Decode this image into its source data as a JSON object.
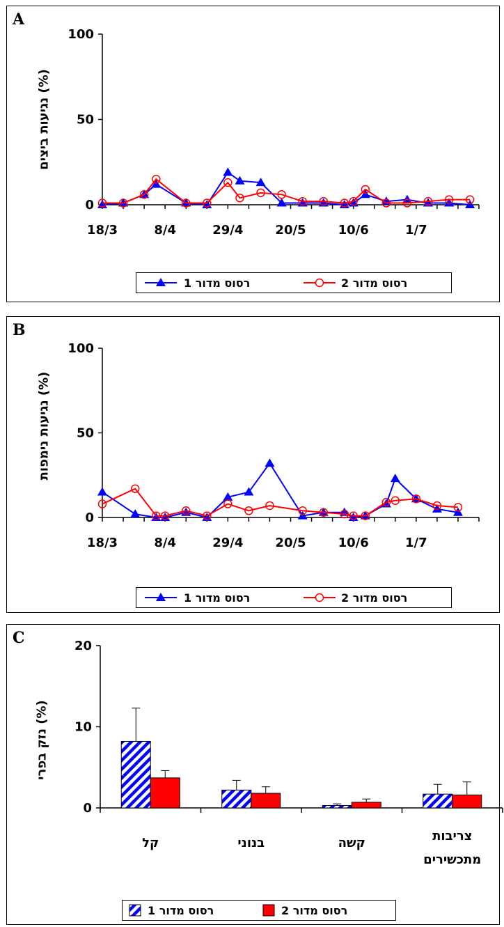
{
  "chart_data": [
    {
      "panel": "A",
      "type": "line",
      "ylabel": "נגיעות ביצים (%)",
      "ylim": [
        0,
        100
      ],
      "yticks": [
        "0",
        "50",
        "100"
      ],
      "xtick_labels": [
        "18/3",
        "8/4",
        "29/4",
        "20/5",
        "10/6",
        "1/7"
      ],
      "series": [
        {
          "name": "רסוס מדור 1",
          "color": "#0000ff",
          "marker": "triangle",
          "x": [
            "18/3",
            "25/3",
            "1/4",
            "5/4",
            "15/4",
            "22/4",
            "29/4",
            "3/5",
            "10/5",
            "17/5",
            "24/5",
            "31/5",
            "7/6",
            "10/6",
            "14/6",
            "21/6",
            "28/6",
            "5/7",
            "12/7",
            "19/7"
          ],
          "values": [
            0,
            1,
            6,
            12,
            1,
            0,
            19,
            14,
            13,
            1,
            1,
            1,
            0,
            1,
            6,
            2,
            3,
            1,
            1,
            0
          ]
        },
        {
          "name": "רסוס מדור 2",
          "color": "#ff0000",
          "marker": "circle",
          "x": [
            "18/3",
            "25/3",
            "1/4",
            "5/4",
            "15/4",
            "22/4",
            "29/4",
            "3/5",
            "10/5",
            "17/5",
            "24/5",
            "31/5",
            "7/6",
            "10/6",
            "14/6",
            "21/6",
            "28/6",
            "5/7",
            "12/7",
            "19/7"
          ],
          "values": [
            1,
            1,
            6,
            15,
            1,
            1,
            13,
            4,
            7,
            6,
            2,
            2,
            1,
            2,
            9,
            1,
            1,
            2,
            3,
            3
          ]
        }
      ],
      "legend": "bottom"
    },
    {
      "panel": "B",
      "type": "line",
      "ylabel": "נגיעות נימפות (%)",
      "ylim": [
        0,
        100
      ],
      "yticks": [
        "0",
        "50",
        "100"
      ],
      "xtick_labels": [
        "18/3",
        "8/4",
        "29/4",
        "20/5",
        "10/6",
        "1/7"
      ],
      "series": [
        {
          "name": "רסוס מדור 1",
          "color": "#0000ff",
          "marker": "triangle",
          "x": [
            "18/3",
            "29/3",
            "5/4",
            "8/4",
            "15/4",
            "22/4",
            "29/4",
            "6/5",
            "13/5",
            "24/5",
            "31/5",
            "7/6",
            "10/6",
            "14/6",
            "21/6",
            "24/6",
            "1/7",
            "8/7",
            "15/7"
          ],
          "values": [
            15,
            2,
            0,
            0,
            3,
            0,
            12,
            15,
            32,
            1,
            3,
            3,
            0,
            1,
            8,
            23,
            11,
            5,
            3
          ]
        },
        {
          "name": "רסוס מדור 2",
          "color": "#ff0000",
          "marker": "circle",
          "x": [
            "18/3",
            "29/3",
            "5/4",
            "8/4",
            "15/4",
            "22/4",
            "29/4",
            "6/5",
            "13/5",
            "24/5",
            "31/5",
            "7/6",
            "10/6",
            "14/6",
            "21/6",
            "24/6",
            "1/7",
            "8/7",
            "15/7"
          ],
          "values": [
            8,
            17,
            1,
            1,
            4,
            1,
            8,
            4,
            7,
            4,
            3,
            2,
            1,
            1,
            9,
            10,
            11,
            7,
            6
          ]
        }
      ],
      "legend": "bottom"
    },
    {
      "panel": "C",
      "type": "bar",
      "ylabel": "נזק בפרי (%)",
      "ylim": [
        0,
        20
      ],
      "yticks": [
        "0",
        "10",
        "20"
      ],
      "categories": [
        "קל",
        "בנוני",
        "קשה",
        "צריבות מתכשירים"
      ],
      "series": [
        {
          "name": "רסוס מדור 1",
          "color": "#0000ff",
          "fill": "hatch",
          "values": [
            8.2,
            2.2,
            0.3,
            1.7
          ],
          "errors": [
            4.1,
            1.2,
            0.2,
            1.2
          ]
        },
        {
          "name": "רסוס מדור 2",
          "color": "#ff0000",
          "fill": "solid",
          "values": [
            3.7,
            1.8,
            0.7,
            1.6
          ],
          "errors": [
            0.9,
            0.8,
            0.4,
            1.6
          ]
        }
      ],
      "legend": "bottom"
    }
  ],
  "panels": {
    "A": {
      "label": "A"
    },
    "B": {
      "label": "B"
    },
    "C": {
      "label": "C",
      "cat4_line1": "צריבות",
      "cat4_line2": "מתכשירים"
    }
  }
}
